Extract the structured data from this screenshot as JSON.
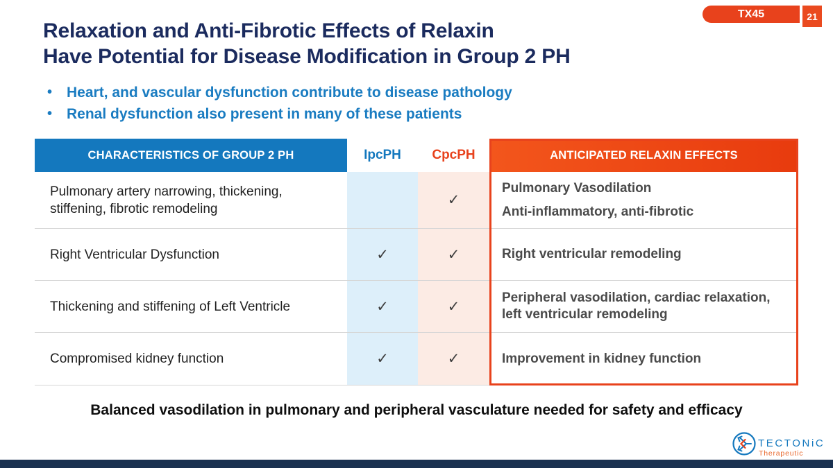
{
  "badge": {
    "label": "TX45",
    "page_number": "21"
  },
  "title": {
    "line1": "Relaxation and Anti-Fibrotic Effects of Relaxin",
    "line2": "Have Potential for Disease Modification in Group 2 PH"
  },
  "bullets": [
    "Heart, and vascular dysfunction contribute to disease pathology",
    "Renal dysfunction also present in many of these patients"
  ],
  "table": {
    "headers": {
      "characteristics": "CHARACTERISTICS OF GROUP 2 PH",
      "ipcph": "IpcPH",
      "cpcph": "CpcPH",
      "effects": "ANTICIPATED RELAXIN EFFECTS"
    },
    "check_glyph": "✓",
    "rows": [
      {
        "characteristic": "Pulmonary artery narrowing, thickening, stiffening, fibrotic remodeling",
        "ipcph": false,
        "cpcph": true,
        "effects": [
          "Pulmonary Vasodilation",
          "Anti-inflammatory, anti-fibrotic"
        ]
      },
      {
        "characteristic": "Right Ventricular Dysfunction",
        "ipcph": true,
        "cpcph": true,
        "effects": [
          "Right ventricular remodeling"
        ]
      },
      {
        "characteristic": "Thickening and stiffening of Left Ventricle",
        "ipcph": true,
        "cpcph": true,
        "effects": [
          "Peripheral vasodilation, cardiac relaxation, left ventricular remodeling"
        ]
      },
      {
        "characteristic": "Compromised kidney function",
        "ipcph": true,
        "cpcph": true,
        "effects": [
          "Improvement in kidney function"
        ]
      }
    ]
  },
  "footer": {
    "statement": "Balanced vasodilation in pulmonary and peripheral vasculature needed for safety and efficacy"
  },
  "logo": {
    "wordmark": "TECTONiC",
    "subtitle": "Therapeutic"
  },
  "colors": {
    "title_navy": "#1b2b5e",
    "bullet_blue": "#1a7cc1",
    "header_blue": "#1478be",
    "accent_orange": "#e8421c",
    "ipcph_tint": "#ddeffa",
    "cpcph_tint": "#fcebe4",
    "bottom_bar_navy": "#1a3150"
  }
}
